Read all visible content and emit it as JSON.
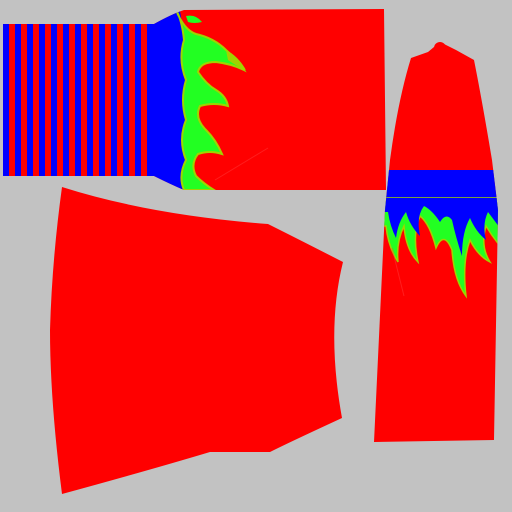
{
  "texture_atlas": {
    "background_color": "#c2c2c2",
    "colors": {
      "red": "#ff0000",
      "blue": "#0000ff",
      "green": "#22ff22",
      "edge_green": "#9fd400"
    },
    "pieces": [
      {
        "name": "sleeve-panel",
        "pattern": "stripes-to-flames"
      },
      {
        "name": "front-panel",
        "pattern": "solid-red"
      },
      {
        "name": "tall-panel",
        "pattern": "blue-band-with-flames"
      }
    ]
  }
}
